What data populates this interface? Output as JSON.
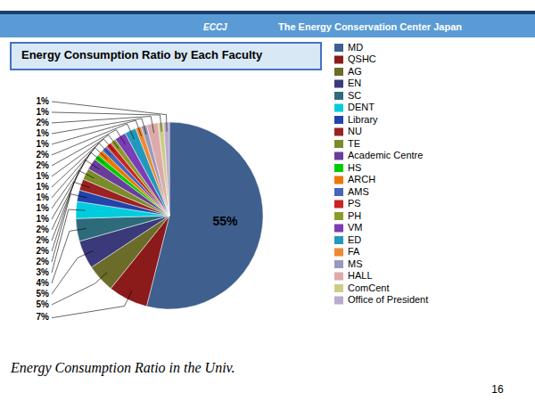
{
  "chart_data": {
    "type": "pie",
    "title": "Energy Consumption Ratio by Each Faculty",
    "subtitle": "Energy Consumption Ratio in the Univ.",
    "annotations": [
      "ECCJ",
      "The Energy Conservation Center Japan",
      "16"
    ],
    "categories": [
      "MD",
      "QSHC",
      "AG",
      "EN",
      "SC",
      "DENT",
      "Library",
      "NU",
      "TE",
      "Academic Centre",
      "HS",
      "ARCH",
      "AMS",
      "PS",
      "PH",
      "VM",
      "ED",
      "FA",
      "MS",
      "HALL",
      "ComCent",
      "Office of President"
    ],
    "values": [
      55,
      7,
      5,
      5,
      4,
      3,
      2,
      2,
      2,
      2,
      1,
      1,
      1,
      1,
      1,
      2,
      2,
      1,
      1,
      2,
      1,
      1
    ],
    "value_labels": [
      "55%",
      "7%",
      "5%",
      "5%",
      "4%",
      "3%",
      "2%",
      "2%",
      "2%",
      "2%",
      "1%",
      "1%",
      "1%",
      "1%",
      "1%",
      "2%",
      "2%",
      "1%",
      "1%",
      "2%",
      "1%",
      "1%"
    ],
    "colors": [
      "#3F5F8F",
      "#8B1A1A",
      "#6B6B2A",
      "#3A3A7A",
      "#2E6B7A",
      "#00CCDD",
      "#2244AA",
      "#9B2222",
      "#7A8B2A",
      "#6A3D9A",
      "#00CC00",
      "#EE7700",
      "#4466BB",
      "#CC2222",
      "#8B9B2A",
      "#7B3DB5",
      "#2299BB",
      "#EE8833",
      "#9999BB",
      "#DDAAAA",
      "#CCCC88",
      "#BBAACC"
    ],
    "data_labels": true,
    "legend": "upper right"
  }
}
